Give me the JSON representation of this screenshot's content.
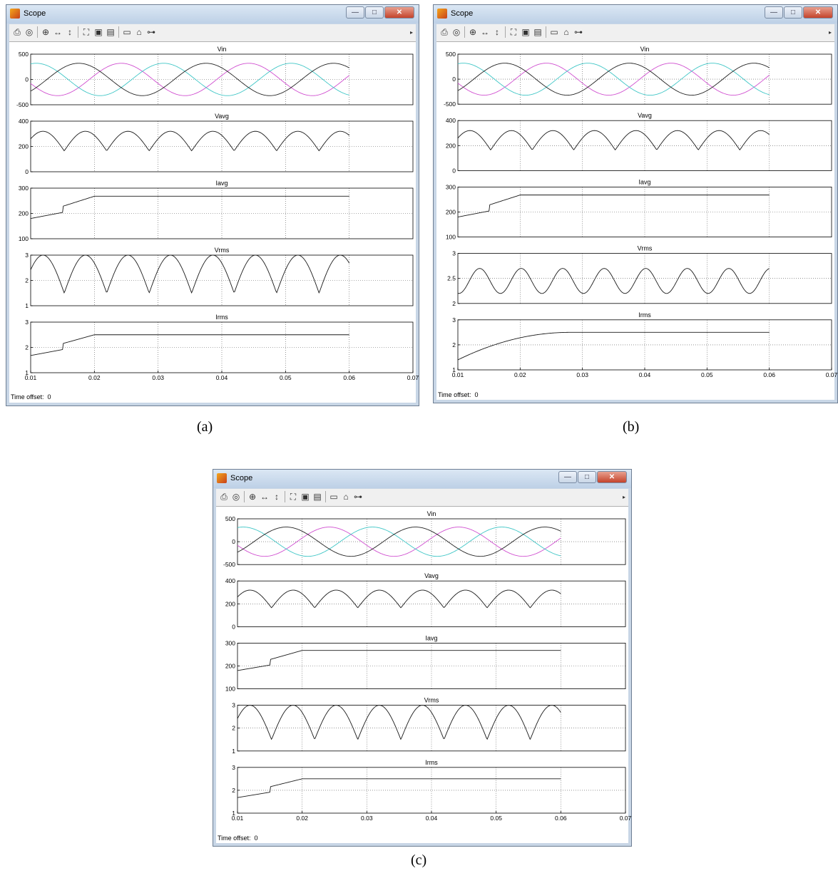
{
  "windows": [
    {
      "id": "a",
      "title": "Scope",
      "caption": "(a)",
      "time_offset_label": "Time offset:",
      "time_offset_value": "0",
      "chart_data": {
        "type": "line",
        "x_ticks": [
          "0.01",
          "0.02",
          "0.03",
          "0.04",
          "0.05",
          "0.06",
          "0.07"
        ],
        "xlim": [
          0.01,
          0.07
        ],
        "data_end": 0.06,
        "grid": true,
        "subplots": [
          {
            "title": "Vin",
            "kind": "three_phase",
            "amplitude": 320,
            "phase_colors": [
              "#d04fd0",
              "#3fc6c6",
              "#222222"
            ],
            "ylim": [
              -500,
              500
            ],
            "yticks": [
              "500",
              "0",
              "-500"
            ]
          },
          {
            "title": "Vavg",
            "kind": "rectified",
            "peak": 320,
            "trough": 165,
            "ylim": [
              0,
              400
            ],
            "yticks": [
              "400",
              "200",
              "0"
            ]
          },
          {
            "title": "Iavg",
            "kind": "rise",
            "start": 180,
            "mid": 228,
            "end": 268,
            "ylim": [
              100,
              300
            ],
            "yticks": [
              "300",
              "200",
              "100"
            ]
          },
          {
            "title": "Vrms",
            "kind": "rectified",
            "peak": 3.0,
            "trough": 1.5,
            "ylim": [
              1,
              3
            ],
            "yticks": [
              "3",
              "2",
              "1"
            ]
          },
          {
            "title": "Irms",
            "kind": "rise",
            "start": 1.68,
            "mid": 2.15,
            "end": 2.5,
            "ylim": [
              1,
              3
            ],
            "yticks": [
              "3",
              "2",
              "1"
            ]
          }
        ]
      }
    },
    {
      "id": "b",
      "title": "Scope",
      "caption": "(b)",
      "time_offset_label": "Time offset:",
      "time_offset_value": "0",
      "chart_data": {
        "type": "line",
        "x_ticks": [
          "0.01",
          "0.02",
          "0.03",
          "0.04",
          "0.05",
          "0.06",
          "0.07"
        ],
        "xlim": [
          0.01,
          0.07
        ],
        "data_end": 0.06,
        "grid": true,
        "subplots": [
          {
            "title": "Vin",
            "kind": "three_phase",
            "amplitude": 320,
            "phase_colors": [
              "#d04fd0",
              "#3fc6c6",
              "#222222"
            ],
            "ylim": [
              -500,
              500
            ],
            "yticks": [
              "500",
              "0",
              "-500"
            ]
          },
          {
            "title": "Vavg",
            "kind": "rectified",
            "peak": 320,
            "trough": 165,
            "ylim": [
              0,
              400
            ],
            "yticks": [
              "400",
              "200",
              "0"
            ]
          },
          {
            "title": "Iavg",
            "kind": "rise",
            "start": 180,
            "mid": 228,
            "end": 268,
            "ylim": [
              100,
              300
            ],
            "yticks": [
              "300",
              "200",
              "100"
            ]
          },
          {
            "title": "Vrms",
            "kind": "sine",
            "peak": 2.7,
            "trough": 2.2,
            "ylim": [
              2,
              3
            ],
            "yticks": [
              "3",
              "2.5",
              "2"
            ]
          },
          {
            "title": "Irms",
            "kind": "rise_smooth",
            "start": 1.4,
            "mid": 2.0,
            "end": 2.5,
            "ylim": [
              1,
              3
            ],
            "yticks": [
              "3",
              "2",
              "1"
            ]
          }
        ]
      }
    },
    {
      "id": "c",
      "title": "Scope",
      "caption": "(c)",
      "time_offset_label": "Time offset:",
      "time_offset_value": "0",
      "chart_data": {
        "type": "line",
        "x_ticks": [
          "0.01",
          "0.02",
          "0.03",
          "0.04",
          "0.05",
          "0.06",
          "0.07"
        ],
        "xlim": [
          0.01,
          0.07
        ],
        "data_end": 0.06,
        "grid": true,
        "subplots": [
          {
            "title": "Vin",
            "kind": "three_phase",
            "amplitude": 320,
            "phase_colors": [
              "#d04fd0",
              "#3fc6c6",
              "#222222"
            ],
            "ylim": [
              -500,
              500
            ],
            "yticks": [
              "500",
              "0",
              "-500"
            ]
          },
          {
            "title": "Vavg",
            "kind": "rectified",
            "peak": 320,
            "trough": 165,
            "ylim": [
              0,
              400
            ],
            "yticks": [
              "400",
              "200",
              "0"
            ]
          },
          {
            "title": "Iavg",
            "kind": "rise",
            "start": 180,
            "mid": 228,
            "end": 268,
            "ylim": [
              100,
              300
            ],
            "yticks": [
              "300",
              "200",
              "100"
            ]
          },
          {
            "title": "Vrms",
            "kind": "rectified",
            "peak": 3.0,
            "trough": 1.5,
            "ylim": [
              1,
              3
            ],
            "yticks": [
              "3",
              "2",
              "1"
            ]
          },
          {
            "title": "Irms",
            "kind": "rise",
            "start": 1.68,
            "mid": 2.15,
            "end": 2.5,
            "ylim": [
              1,
              3
            ],
            "yticks": [
              "3",
              "2",
              "1"
            ]
          }
        ]
      }
    }
  ],
  "toolbar_icons": [
    "print-icon",
    "parameters-icon",
    "zoom-icon",
    "zoom-x-icon",
    "zoom-y-icon",
    "autoscale-icon",
    "save-axes-icon",
    "restore-axes-icon",
    "floating-scope-icon",
    "lock-icon",
    "signal-selection-icon"
  ]
}
